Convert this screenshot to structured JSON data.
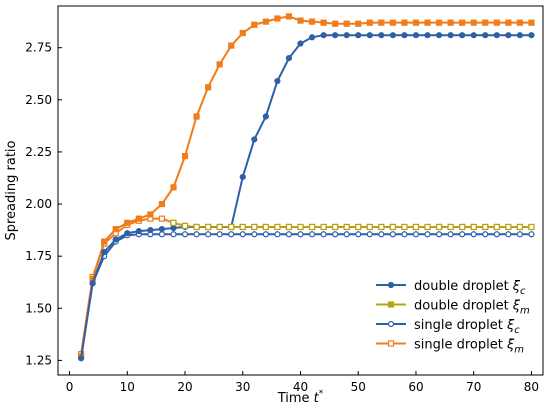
{
  "chart_data": {
    "type": "line",
    "title": "",
    "xlabel": "Time t*",
    "xlabel_main": "Time t",
    "xlabel_sup": "*",
    "ylabel": "Spreading ratio",
    "xlim": [
      -2,
      82
    ],
    "ylim": [
      1.18,
      2.95
    ],
    "xticks": [
      0,
      10,
      20,
      30,
      40,
      50,
      60,
      70,
      80
    ],
    "yticks": [
      1.25,
      1.5,
      1.75,
      2.0,
      2.25,
      2.5,
      2.75
    ],
    "ytick_labels": [
      "1.25",
      "1.50",
      "1.75",
      "2.00",
      "2.25",
      "2.50",
      "2.75"
    ],
    "grid": false,
    "legend_position": "bottom-right",
    "x": [
      2,
      4,
      6,
      8,
      10,
      12,
      14,
      16,
      18,
      20,
      22,
      24,
      26,
      28,
      30,
      32,
      34,
      36,
      38,
      40,
      42,
      44,
      46,
      48,
      50,
      52,
      54,
      56,
      58,
      60,
      62,
      64,
      66,
      68,
      70,
      72,
      74,
      76,
      78,
      80
    ],
    "series": [
      {
        "name": "double droplet ξc",
        "label_main": "double droplet ",
        "label_sym": "ξ",
        "label_sub": "c",
        "color": "#2e5fa8",
        "marker": "circle",
        "filled": true,
        "values": [
          1.26,
          1.62,
          1.77,
          1.83,
          1.86,
          1.87,
          1.875,
          1.88,
          1.885,
          1.89,
          1.89,
          1.89,
          1.89,
          1.89,
          2.13,
          2.31,
          2.42,
          2.59,
          2.7,
          2.77,
          2.8,
          2.81,
          2.81,
          2.81,
          2.81,
          2.81,
          2.81,
          2.81,
          2.81,
          2.81,
          2.81,
          2.81,
          2.81,
          2.81,
          2.81,
          2.81,
          2.81,
          2.81,
          2.81,
          2.81
        ]
      },
      {
        "name": "double droplet ξm",
        "label_main": "double droplet ",
        "label_sym": "ξ",
        "label_sub": "m",
        "color": "#f07d1a",
        "marker": "square",
        "filled": true,
        "values": [
          1.27,
          1.64,
          1.82,
          1.88,
          1.91,
          1.93,
          1.95,
          2.0,
          2.08,
          2.23,
          2.42,
          2.56,
          2.67,
          2.76,
          2.82,
          2.86,
          2.875,
          2.89,
          2.9,
          2.88,
          2.875,
          2.87,
          2.865,
          2.865,
          2.865,
          2.87,
          2.87,
          2.87,
          2.87,
          2.87,
          2.87,
          2.87,
          2.87,
          2.87,
          2.87,
          2.87,
          2.87,
          2.87,
          2.87,
          2.87
        ]
      },
      {
        "name": "single droplet ξc",
        "label_main": "single droplet ",
        "label_sym": "ξ",
        "label_sub": "c",
        "color": "#2e5fa8",
        "marker": "circle",
        "filled": false,
        "values": [
          1.27,
          1.62,
          1.75,
          1.82,
          1.85,
          1.855,
          1.855,
          1.855,
          1.855,
          1.855,
          1.855,
          1.855,
          1.855,
          1.855,
          1.855,
          1.855,
          1.855,
          1.855,
          1.855,
          1.855,
          1.855,
          1.855,
          1.855,
          1.855,
          1.855,
          1.855,
          1.855,
          1.855,
          1.855,
          1.855,
          1.855,
          1.855,
          1.855,
          1.855,
          1.855,
          1.855,
          1.855,
          1.855,
          1.855,
          1.855
        ]
      },
      {
        "name": "single droplet ξm",
        "label_main": "single droplet ",
        "label_sym": "ξ",
        "label_sub": "m",
        "color": "#f07d1a",
        "marker": "square",
        "filled": false,
        "values": [
          1.28,
          1.65,
          1.81,
          1.86,
          1.9,
          1.92,
          1.93,
          1.93,
          1.91,
          1.895,
          1.89,
          1.89,
          1.89,
          1.89,
          1.89,
          1.89,
          1.89,
          1.89,
          1.89,
          1.89,
          1.89,
          1.89,
          1.89,
          1.89,
          1.89,
          1.89,
          1.89,
          1.89,
          1.89,
          1.89,
          1.89,
          1.89,
          1.89,
          1.89,
          1.89,
          1.89,
          1.89,
          1.89,
          1.89,
          1.89
        ]
      }
    ],
    "overlay_colors": {
      "double droplet ξm": "#b8a413"
    }
  }
}
